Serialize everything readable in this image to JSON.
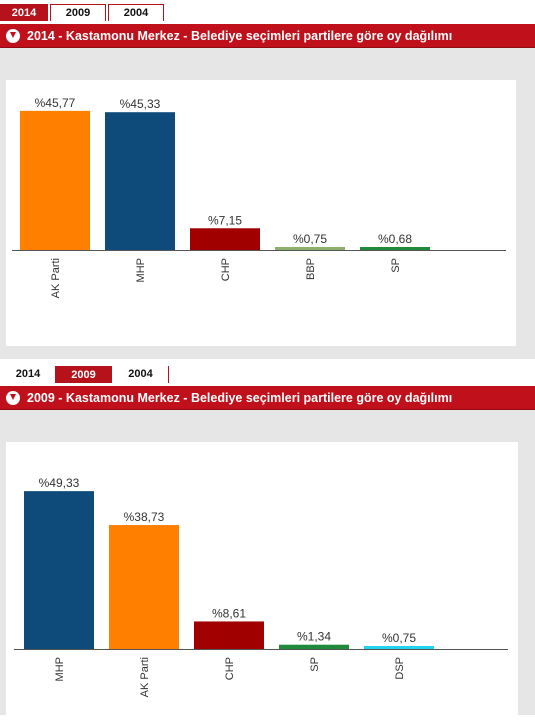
{
  "panels": [
    {
      "tabs": [
        {
          "label": "2014",
          "active": true
        },
        {
          "label": "2009",
          "active": false
        },
        {
          "label": "2004",
          "active": false
        }
      ],
      "title": "2014 - Kastamonu Merkez - Belediye seçimleri partilere göre oy dağılımı"
    },
    {
      "tabs": [
        {
          "label": "2014",
          "active": false
        },
        {
          "label": "2009",
          "active": true
        },
        {
          "label": "2004",
          "active": false
        }
      ],
      "title": "2009 - Kastamonu Merkez - Belediye seçimleri partilere göre oy dağılımı"
    }
  ],
  "chart_data": [
    {
      "type": "bar",
      "categories": [
        "AK Parti",
        "MHP",
        "CHP",
        "BBP",
        "SP"
      ],
      "values": [
        45.77,
        45.33,
        7.15,
        0.75,
        0.68
      ],
      "data_labels": [
        "%45,77",
        "%45,33",
        "%7,15",
        "%0,75",
        "%0,68"
      ],
      "colors": [
        "#ff7f00",
        "#0e4a7a",
        "#a10000",
        "#8fb06a",
        "#1f8a3a"
      ],
      "ylim": [
        0,
        50
      ],
      "grid": false,
      "legend": "none"
    },
    {
      "type": "bar",
      "categories": [
        "MHP",
        "AK Parti",
        "CHP",
        "SP",
        "DSP"
      ],
      "values": [
        49.33,
        38.73,
        8.61,
        1.34,
        0.75
      ],
      "data_labels": [
        "%49,33",
        "%38,73",
        "%8,61",
        "%1,34",
        "%0,75"
      ],
      "colors": [
        "#0e4a7a",
        "#ff7f00",
        "#a10000",
        "#1f8a3a",
        "#22d3f0"
      ],
      "ylim": [
        0,
        50
      ],
      "grid": false,
      "legend": "none"
    }
  ]
}
